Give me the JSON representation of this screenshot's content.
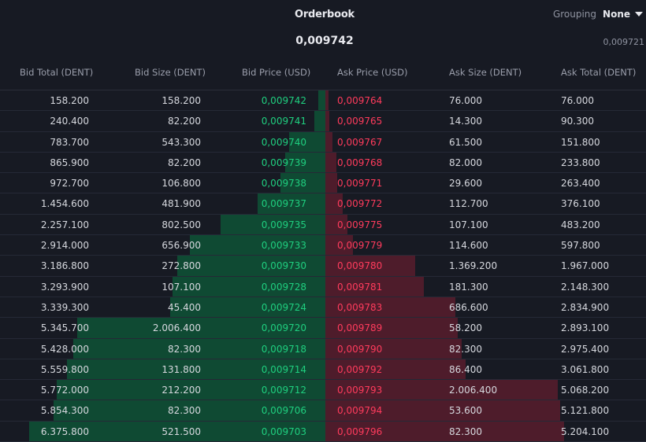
{
  "header": {
    "title": "Orderbook",
    "grouping_label": "Grouping",
    "grouping_value": "None",
    "mid_price": "0,009742",
    "mark_price": "0,009721"
  },
  "columns": {
    "bid_total": "Bid Total (DENT)",
    "bid_size": "Bid Size (DENT)",
    "bid_price": "Bid Price (USD)",
    "ask_price": "Ask Price (USD)",
    "ask_size": "Ask Size (DENT)",
    "ask_total": "Ask Total (DENT)"
  },
  "colors": {
    "bid": "#1fcf7f",
    "ask": "#ff3b5c",
    "bid_bar": "#0f4a33",
    "ask_bar": "#4e1c2b"
  },
  "depth_scale_max": 7000,
  "rows": [
    {
      "bid_total": "158.200",
      "bid_size": "158.200",
      "bid_price": "0,009742",
      "ask_price": "0,009764",
      "ask_size": "76.000",
      "ask_total": "76.000",
      "bid_depth": 158.2,
      "ask_depth": 76.0
    },
    {
      "bid_total": "240.400",
      "bid_size": "82.200",
      "bid_price": "0,009741",
      "ask_price": "0,009765",
      "ask_size": "14.300",
      "ask_total": "90.300",
      "bid_depth": 240.4,
      "ask_depth": 90.3
    },
    {
      "bid_total": "783.700",
      "bid_size": "543.300",
      "bid_price": "0,009740",
      "ask_price": "0,009767",
      "ask_size": "61.500",
      "ask_total": "151.800",
      "bid_depth": 783.7,
      "ask_depth": 151.8
    },
    {
      "bid_total": "865.900",
      "bid_size": "82.200",
      "bid_price": "0,009739",
      "ask_price": "0,009768",
      "ask_size": "82.000",
      "ask_total": "233.800",
      "bid_depth": 865.9,
      "ask_depth": 233.8
    },
    {
      "bid_total": "972.700",
      "bid_size": "106.800",
      "bid_price": "0,009738",
      "ask_price": "0,009771",
      "ask_size": "29.600",
      "ask_total": "263.400",
      "bid_depth": 972.7,
      "ask_depth": 263.4
    },
    {
      "bid_total": "1.454.600",
      "bid_size": "481.900",
      "bid_price": "0,009737",
      "ask_price": "0,009772",
      "ask_size": "112.700",
      "ask_total": "376.100",
      "bid_depth": 1454.6,
      "ask_depth": 376.1
    },
    {
      "bid_total": "2.257.100",
      "bid_size": "802.500",
      "bid_price": "0,009735",
      "ask_price": "0,009775",
      "ask_size": "107.100",
      "ask_total": "483.200",
      "bid_depth": 2257.1,
      "ask_depth": 483.2
    },
    {
      "bid_total": "2.914.000",
      "bid_size": "656.900",
      "bid_price": "0,009733",
      "ask_price": "0,009779",
      "ask_size": "114.600",
      "ask_total": "597.800",
      "bid_depth": 2914.0,
      "ask_depth": 597.8
    },
    {
      "bid_total": "3.186.800",
      "bid_size": "272.800",
      "bid_price": "0,009730",
      "ask_price": "0,009780",
      "ask_size": "1.369.200",
      "ask_total": "1.967.000",
      "bid_depth": 3186.8,
      "ask_depth": 1967.0
    },
    {
      "bid_total": "3.293.900",
      "bid_size": "107.100",
      "bid_price": "0,009728",
      "ask_price": "0,009781",
      "ask_size": "181.300",
      "ask_total": "2.148.300",
      "bid_depth": 3293.9,
      "ask_depth": 2148.3
    },
    {
      "bid_total": "3.339.300",
      "bid_size": "45.400",
      "bid_price": "0,009724",
      "ask_price": "0,009783",
      "ask_size": "686.600",
      "ask_total": "2.834.900",
      "bid_depth": 3339.3,
      "ask_depth": 2834.9
    },
    {
      "bid_total": "5.345.700",
      "bid_size": "2.006.400",
      "bid_price": "0,009720",
      "ask_price": "0,009789",
      "ask_size": "58.200",
      "ask_total": "2.893.100",
      "bid_depth": 5345.7,
      "ask_depth": 2893.1
    },
    {
      "bid_total": "5.428.000",
      "bid_size": "82.300",
      "bid_price": "0,009718",
      "ask_price": "0,009790",
      "ask_size": "82.300",
      "ask_total": "2.975.400",
      "bid_depth": 5428.0,
      "ask_depth": 2975.4
    },
    {
      "bid_total": "5.559.800",
      "bid_size": "131.800",
      "bid_price": "0,009714",
      "ask_price": "0,009792",
      "ask_size": "86.400",
      "ask_total": "3.061.800",
      "bid_depth": 5559.8,
      "ask_depth": 3061.8
    },
    {
      "bid_total": "5.772.000",
      "bid_size": "212.200",
      "bid_price": "0,009712",
      "ask_price": "0,009793",
      "ask_size": "2.006.400",
      "ask_total": "5.068.200",
      "bid_depth": 5772.0,
      "ask_depth": 5068.2
    },
    {
      "bid_total": "5.854.300",
      "bid_size": "82.300",
      "bid_price": "0,009706",
      "ask_price": "0,009794",
      "ask_size": "53.600",
      "ask_total": "5.121.800",
      "bid_depth": 5854.3,
      "ask_depth": 5121.8
    },
    {
      "bid_total": "6.375.800",
      "bid_size": "521.500",
      "bid_price": "0,009703",
      "ask_price": "0,009796",
      "ask_size": "82.300",
      "ask_total": "5.204.100",
      "bid_depth": 6375.8,
      "ask_depth": 5204.1
    }
  ]
}
